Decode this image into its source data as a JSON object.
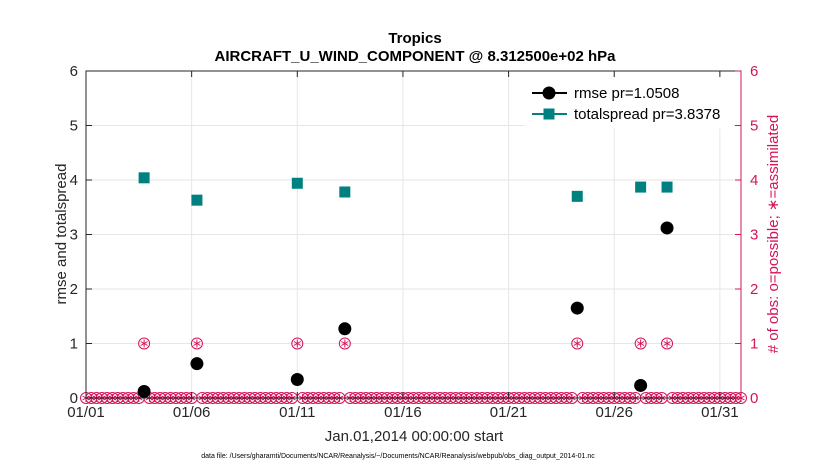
{
  "chart_data": {
    "type": "scatter",
    "title": "Tropics",
    "subtitle": "AIRCRAFT_U_WIND_COMPONENT @ 8.312500e+02 hPa",
    "xlabel": "Jan.01,2014 00:00:00 start",
    "ylabel": "rmse and totalspread",
    "ylabel_right": "# of obs: o=possible; ∗=assimilated",
    "xlim": [
      1,
      32
    ],
    "ylim": [
      0,
      6
    ],
    "ylim_right": [
      0,
      6
    ],
    "x_ticks": [
      {
        "value": 1,
        "label": "01/01"
      },
      {
        "value": 6,
        "label": "01/06"
      },
      {
        "value": 11,
        "label": "01/11"
      },
      {
        "value": 16,
        "label": "01/16"
      },
      {
        "value": 21,
        "label": "01/21"
      },
      {
        "value": 26,
        "label": "01/26"
      },
      {
        "value": 31,
        "label": "01/31"
      }
    ],
    "y_ticks": [
      "0",
      "1",
      "2",
      "3",
      "4",
      "5",
      "6"
    ],
    "y_ticks_right": [
      "0",
      "1",
      "2",
      "3",
      "4",
      "5",
      "6"
    ],
    "grid": true,
    "legend_position": "top-right",
    "series": [
      {
        "name": "rmse pr=1.0508",
        "marker": "circle",
        "color": "#000000",
        "x": [
          3.75,
          6.25,
          11.0,
          13.25,
          24.25,
          27.25,
          28.5
        ],
        "y": [
          0.12,
          0.63,
          0.34,
          1.27,
          1.65,
          0.23,
          3.12
        ]
      },
      {
        "name": "totalspread pr=3.8378",
        "marker": "square",
        "color": "#008080",
        "x": [
          3.75,
          6.25,
          11.0,
          13.25,
          24.25,
          27.25,
          28.5
        ],
        "y": [
          4.04,
          3.63,
          3.94,
          3.78,
          3.7,
          3.87,
          3.87
        ]
      },
      {
        "name": "obs possible/assimilated",
        "axis": "right",
        "marker": "circle-asterisk",
        "color": "#d4145a",
        "x_start": 1.0,
        "x_step": 0.25,
        "count": 125,
        "nonzero": [
          {
            "x": 3.75,
            "y": 1
          },
          {
            "x": 6.25,
            "y": 1
          },
          {
            "x": 11.0,
            "y": 1
          },
          {
            "x": 13.25,
            "y": 1
          },
          {
            "x": 24.25,
            "y": 1
          },
          {
            "x": 27.25,
            "y": 1
          },
          {
            "x": 28.5,
            "y": 1
          }
        ]
      }
    ]
  },
  "footnote": "data file: /Users/gharamti/Documents/NCAR/Reanalysis/~/Documents/NCAR/Reanalysis/webpub/obs_diag_output_2014-01.nc"
}
